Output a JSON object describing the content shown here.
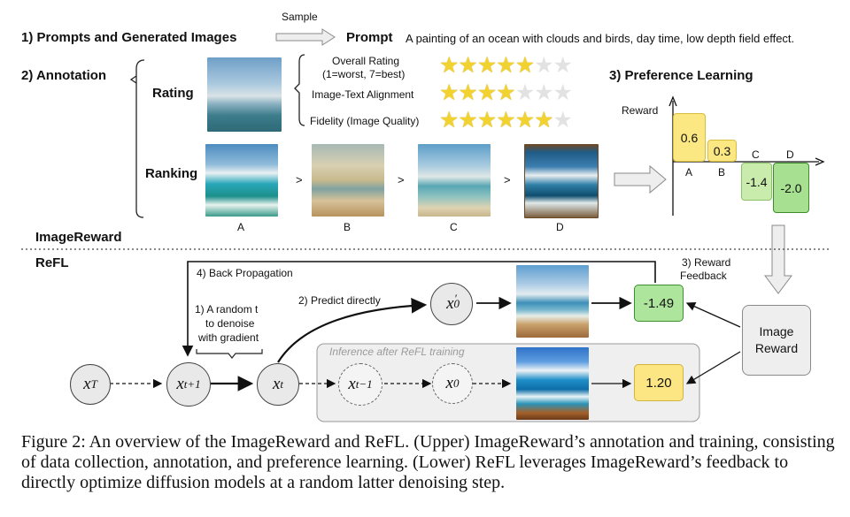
{
  "header": {
    "sample_label": "Sample",
    "section1": "1) Prompts and Generated Images",
    "prompt_label": "Prompt",
    "prompt_text": "A painting of an ocean with clouds and birds, day time, low depth field effect."
  },
  "annotation": {
    "title": "2) Annotation",
    "rating_label": "Rating",
    "ranking_label": "Ranking",
    "criteria": [
      {
        "name": "Overall Rating",
        "sub": "(1=worst, 7=best)",
        "stars": 5,
        "max": 7
      },
      {
        "name": "Image-Text Alignment",
        "sub": "",
        "stars": 4,
        "max": 7
      },
      {
        "name": "Fidelity (Image Quality)",
        "sub": "",
        "stars": 6,
        "max": 7
      }
    ],
    "ranking_items": [
      "A",
      "B",
      "C",
      "D"
    ],
    "ranking_sep": ">"
  },
  "preference": {
    "title": "3) Preference Learning",
    "axis_label": "Reward",
    "bars": [
      {
        "label": "A",
        "value": "0.6"
      },
      {
        "label": "B",
        "value": "0.3"
      },
      {
        "label": "C",
        "value": "-1.4"
      },
      {
        "label": "D",
        "value": "-2.0"
      }
    ]
  },
  "imagereward_label": "ImageReward",
  "refl": {
    "title": "ReFL",
    "back_prop": "4) Back Propagation",
    "reward_feedback_1": "3) Reward",
    "reward_feedback_2": "Feedback",
    "predict": "2) Predict directly",
    "random_t_1": "1) A random t",
    "random_t_2": "to denoise",
    "random_t_3": "with gradient",
    "inference": "Inference after ReFL training",
    "image_reward_1": "Image",
    "image_reward_2": "Reward",
    "score_train": "-1.49",
    "score_infer": "1.20",
    "nodes": {
      "xT": {
        "base": "x",
        "sub": "T"
      },
      "xt1": {
        "base": "x",
        "sub": "t+1"
      },
      "xt": {
        "base": "x",
        "sub": "t"
      },
      "xtm1": {
        "base": "x",
        "sub": "t−1"
      },
      "x0": {
        "base": "x",
        "sub": "0"
      },
      "x0p": {
        "base": "x",
        "sub": "0",
        "sup": "′"
      }
    }
  },
  "caption": "Figure 2: An overview of the ImageReward and ReFL. (Upper) ImageReward’s annotation and training, consisting of data collection, annotation, and preference learning. (Lower) ReFL leverages ImageReward’s feedback to directly optimize diffusion models at a random latter denoising step."
}
